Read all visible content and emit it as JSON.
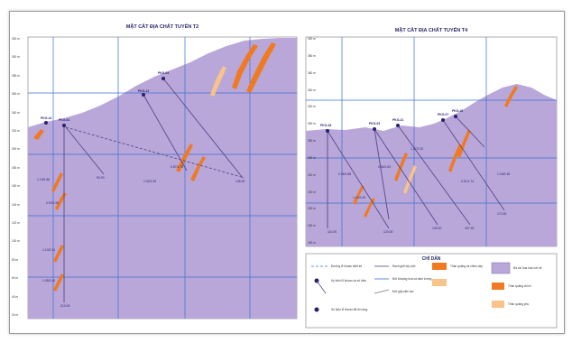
{
  "left_section": {
    "title": "MẶT CẮT ĐỊA CHẤT TUYẾN T2",
    "elevations": [
      "320 m",
      "300 m",
      "280 m",
      "260 m",
      "240 m",
      "220 m",
      "200 m",
      "180 m",
      "160 m",
      "140 m",
      "120 m",
      "100 m",
      "80 m",
      "60 m",
      "40 m",
      "20 m"
    ],
    "holes": [
      "PKG-01",
      "PKG-04",
      "PKG-12",
      "PKG-14"
    ],
    "depths": [
      "90.00",
      "145.00",
      "210.00"
    ],
    "markers": [
      "1.13/2.66",
      "0.92/1.50",
      "1.10/2.31",
      "1.05/2.40",
      "0.87/1.75",
      "1.02/1.95"
    ]
  },
  "right_section": {
    "title": "MẶT CẮT ĐỊA CHẤT TUYẾN T4",
    "elevations": [
      "400 m",
      "380 m",
      "360 m",
      "340 m",
      "320 m",
      "300 m",
      "280 m",
      "260 m",
      "240 m",
      "220 m",
      "200 m",
      "180 m",
      "160 m"
    ],
    "holes": [
      "PKG-18",
      "PKG-03",
      "PKG-21",
      "PKG-07",
      "PKG-26"
    ],
    "depths": [
      "120.00",
      "135.00",
      "157.50",
      "172.50",
      "110.00"
    ],
    "markers": [
      "0.96/1.88",
      "1.12/2.05",
      "0.84/1.62",
      "1.07/2.20",
      "0.91/1.74",
      "1.15/2.48"
    ]
  },
  "legend": {
    "title": "CHỈ DẪN",
    "items": [
      "Đường lỗ khoan thiết kế",
      "Ký hiệu lỗ khoan và số hiệu",
      "Ranh giới lớp phủ",
      "Đới khoáng hoá và hàm lượng",
      "Thân quặng và chiều dày",
      "Đứt gãy kiến tạo",
      "Số hiệu lỗ khoan đã thi công",
      "Đá vôi hoa hoá nứt nẻ",
      "Thân quặng chính",
      "Thân quặng phụ"
    ]
  },
  "colors": {
    "rock": "#b9a7d9",
    "ore": "#f07a22",
    "ore_light": "#f8c48a",
    "grid": "#3b6fd3",
    "drill": "#5a4a8a"
  }
}
